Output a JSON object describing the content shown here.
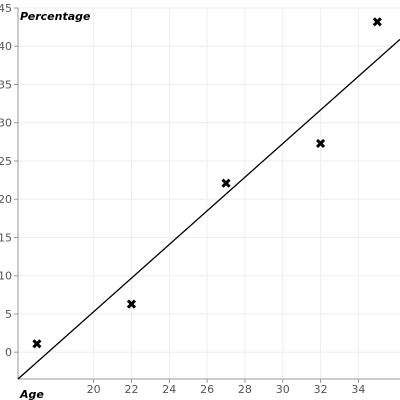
{
  "chart_data": {
    "type": "scatter",
    "xlabel": "Age",
    "ylabel": "Percentage",
    "xlim": [
      16,
      36.2
    ],
    "ylim": [
      -3.5,
      45
    ],
    "x_ticks": [
      20,
      22,
      24,
      26,
      28,
      30,
      32,
      34
    ],
    "y_ticks": [
      0,
      5,
      10,
      15,
      20,
      25,
      30,
      35,
      40,
      45
    ],
    "grid": true,
    "series": [
      {
        "points": [
          {
            "x": 17,
            "y": 1.1
          },
          {
            "x": 22,
            "y": 6.3
          },
          {
            "x": 27,
            "y": 22.1
          },
          {
            "x": 32,
            "y": 27.3
          },
          {
            "x": 35,
            "y": 43.2
          }
        ],
        "marker": "x",
        "color": "#000000"
      }
    ],
    "trendline": {
      "start": {
        "x": 16,
        "y": -3.5
      },
      "end": {
        "x": 36.2,
        "y": 40.9
      },
      "color": "#000000"
    }
  }
}
